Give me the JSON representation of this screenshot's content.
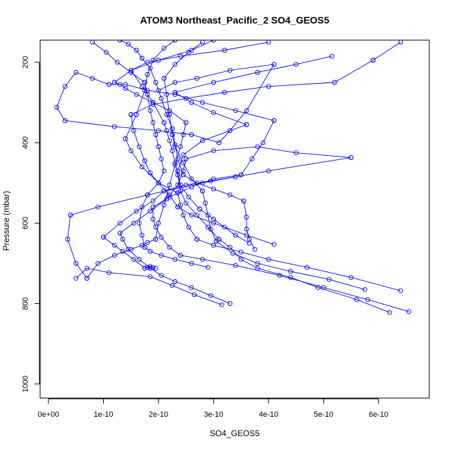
{
  "chart_data": {
    "type": "line",
    "title": "ATOM3 Northeast_Pacific_2 SO4_GEOS5",
    "xlabel": "SO4_GEOS5",
    "ylabel": "Pressure (mbar)",
    "xlim": [
      -1.5e-11,
      6.92e-10
    ],
    "ylim": [
      1035,
      145
    ],
    "y_reversed": true,
    "x_ticks": [
      {
        "value": 0,
        "label": "0e+00"
      },
      {
        "value": 1e-10,
        "label": "1e-10"
      },
      {
        "value": 2e-10,
        "label": "2e-10"
      },
      {
        "value": 3e-10,
        "label": "3e-10"
      },
      {
        "value": 4e-10,
        "label": "4e-10"
      },
      {
        "value": 5e-10,
        "label": "5e-10"
      },
      {
        "value": 6e-10,
        "label": "6e-10"
      }
    ],
    "y_ticks": [
      {
        "value": 200,
        "label": "200"
      },
      {
        "value": 400,
        "label": "400"
      },
      {
        "value": 600,
        "label": "600"
      },
      {
        "value": 800,
        "label": "800"
      },
      {
        "value": 1000,
        "label": "1000"
      }
    ],
    "grid": false,
    "legend": "none",
    "marker": "open-circle",
    "color": "#0000ff",
    "series": [
      {
        "x": [
          3.15e-10,
          2.65e-10,
          2.25e-10,
          1.85e-10,
          1.1e-10,
          7e-11,
          5e-11
        ],
        "y": [
          803,
          778,
          755,
          733,
          723,
          712,
          737
        ]
      },
      {
        "x": [
          7e-11,
          9e-11,
          1.2e-10,
          1.5e-10,
          1.7e-10,
          1.8e-10,
          1.95e-10
        ],
        "y": [
          737,
          700,
          680,
          665,
          655,
          648,
          640
        ]
      },
      {
        "x": [
          1.95e-10,
          2e-10,
          2.1e-10,
          2.2e-10,
          2.3e-10,
          2.4e-10,
          2.45e-10,
          2.5e-10
        ],
        "y": [
          640,
          600,
          555,
          505,
          455,
          410,
          380,
          350
        ]
      },
      {
        "x": [
          2.5e-10,
          2.2e-10,
          1.9e-10,
          1.6e-10,
          1.4e-10,
          1.3e-10,
          1.2e-10
        ],
        "y": [
          350,
          320,
          300,
          280,
          265,
          255,
          250
        ]
      },
      {
        "x": [
          1.2e-10,
          1.5e-10,
          2e-10,
          2.6e-10,
          3e-10
        ],
        "y": [
          250,
          220,
          195,
          170,
          145
        ]
      },
      {
        "x": [
          3.3e-10,
          2.95e-10,
          2.6e-10,
          2.3e-10,
          2.05e-10,
          1.85e-10
        ],
        "y": [
          800,
          780,
          760,
          745,
          730,
          712
        ]
      },
      {
        "x": [
          1.85e-10,
          1.65e-10,
          1.45e-10,
          1.35e-10,
          1.3e-10
        ],
        "y": [
          712,
          690,
          665,
          640,
          625
        ]
      },
      {
        "x": [
          1.3e-10,
          1.55e-10,
          1.85e-10,
          2.15e-10,
          2.35e-10,
          2.45e-10,
          2.5e-10
        ],
        "y": [
          625,
          600,
          570,
          540,
          505,
          470,
          440
        ]
      },
      {
        "x": [
          2.5e-10,
          3e-10,
          3.8e-10,
          4.5e-10,
          5.5e-10
        ],
        "y": [
          440,
          420,
          410,
          425,
          437
        ]
      },
      {
        "x": [
          5.5e-10,
          4e-10,
          2.8e-10,
          1.8e-10,
          9e-11,
          4e-11
        ],
        "y": [
          437,
          470,
          500,
          530,
          560,
          580
        ]
      },
      {
        "x": [
          4e-11,
          3.5e-11,
          5e-11,
          7e-11
        ],
        "y": [
          580,
          640,
          700,
          737
        ]
      },
      {
        "x": [
          6.55e-10,
          5.8e-10,
          5e-10,
          4.2e-10,
          3.4e-10,
          2.8e-10,
          2.4e-10
        ],
        "y": [
          820,
          790,
          760,
          730,
          705,
          690,
          680
        ]
      },
      {
        "x": [
          2.4e-10,
          2.2e-10,
          2.05e-10,
          1.95e-10,
          1.9e-10,
          1.9e-10
        ],
        "y": [
          680,
          660,
          635,
          610,
          590,
          560
        ]
      },
      {
        "x": [
          1.9e-10,
          2.2e-10,
          2.6e-10,
          3e-10,
          3.5e-10
        ],
        "y": [
          560,
          535,
          510,
          490,
          480
        ]
      },
      {
        "x": [
          3.5e-10,
          3.7e-10,
          3.9e-10,
          4.1e-10
        ],
        "y": [
          480,
          440,
          400,
          345
        ]
      },
      {
        "x": [
          4.1e-10,
          3.4e-10,
          2.8e-10,
          2.3e-10,
          1.8e-10,
          1.4e-10,
          1.1e-10
        ],
        "y": [
          345,
          320,
          300,
          280,
          270,
          255,
          255
        ]
      },
      {
        "x": [
          1.1e-10,
          8e-11,
          5e-11,
          3e-11,
          1.5e-11,
          3e-11
        ],
        "y": [
          255,
          240,
          225,
          260,
          312,
          345
        ]
      },
      {
        "x": [
          3e-11,
          1.2e-10,
          2e-10,
          2.6e-10,
          3.1e-10
        ],
        "y": [
          345,
          360,
          370,
          380,
          400
        ]
      },
      {
        "x": [
          3.1e-10,
          3.3e-10,
          3.6e-10,
          4.1e-10
        ],
        "y": [
          400,
          370,
          320,
          205
        ]
      },
      {
        "x": [
          4.1e-10,
          3.3e-10,
          2.7e-10,
          2.3e-10,
          2e-10
        ],
        "y": [
          205,
          220,
          240,
          250,
          270
        ]
      },
      {
        "x": [
          6.2e-10,
          5.6e-10,
          4.9e-10,
          4.4e-10,
          3.8e-10,
          3.5e-10,
          3.3e-10,
          3.1e-10
        ],
        "y": [
          822,
          790,
          760,
          735,
          712,
          690,
          660,
          640
        ]
      },
      {
        "x": [
          3.1e-10,
          2.9e-10,
          2.7e-10,
          2.5e-10,
          2.4e-10,
          2.35e-10
        ],
        "y": [
          640,
          610,
          580,
          550,
          520,
          480
        ]
      },
      {
        "x": [
          2.35e-10,
          2.3e-10,
          2.25e-10,
          2.2e-10,
          2.15e-10,
          2.1e-10
        ],
        "y": [
          480,
          450,
          420,
          395,
          370,
          350
        ]
      },
      {
        "x": [
          2.1e-10,
          1.9e-10,
          1.7e-10,
          1.5e-10
        ],
        "y": [
          350,
          300,
          260,
          220
        ]
      },
      {
        "x": [
          1.5e-10,
          1.8e-10,
          2.4e-10,
          3.2e-10,
          4e-10
        ],
        "y": [
          220,
          200,
          185,
          170,
          150
        ]
      },
      {
        "x": [
          6.4e-10,
          5.5e-10,
          4.7e-10,
          4e-10,
          3.5e-10,
          3e-10,
          2.7e-10
        ],
        "y": [
          768,
          735,
          710,
          690,
          672,
          655,
          640
        ]
      },
      {
        "x": [
          2.7e-10,
          2.55e-10,
          2.45e-10,
          2.4e-10,
          2.35e-10
        ],
        "y": [
          640,
          610,
          580,
          555,
          525
        ]
      },
      {
        "x": [
          2.35e-10,
          2e-10,
          1.7e-10,
          1.5e-10,
          1.4e-10
        ],
        "y": [
          525,
          500,
          460,
          420,
          390
        ]
      },
      {
        "x": [
          1.4e-10,
          1.6e-10,
          1.75e-10,
          1.8e-10
        ],
        "y": [
          390,
          330,
          270,
          230
        ]
      },
      {
        "x": [
          1.8e-10,
          1.9e-10,
          2.1e-10,
          2.3e-10
        ],
        "y": [
          230,
          195,
          165,
          145
        ]
      },
      {
        "x": [
          5.75e-10,
          5.1e-10,
          4.4e-10,
          3.8e-10,
          3.35e-10,
          3.05e-10
        ],
        "y": [
          765,
          740,
          720,
          700,
          675,
          645
        ]
      },
      {
        "x": [
          3.05e-10,
          2.95e-10,
          2.9e-10,
          2.85e-10,
          2.8e-10
        ],
        "y": [
          645,
          615,
          580,
          550,
          520
        ]
      },
      {
        "x": [
          2.8e-10,
          2.6e-10,
          2.45e-10,
          2.3e-10,
          2.25e-10
        ],
        "y": [
          520,
          490,
          450,
          410,
          380
        ]
      },
      {
        "x": [
          2.25e-10,
          2.2e-10,
          2.15e-10,
          2.1e-10
        ],
        "y": [
          380,
          330,
          280,
          240
        ]
      },
      {
        "x": [
          2.1e-10,
          2.3e-10,
          2.55e-10,
          2.8e-10
        ],
        "y": [
          240,
          205,
          175,
          150
        ]
      },
      {
        "x": [
          3.65e-10,
          3.4e-10,
          3.2e-10,
          3e-10,
          2.75e-10
        ],
        "y": [
          650,
          630,
          610,
          590,
          565
        ]
      },
      {
        "x": [
          2.75e-10,
          2.55e-10,
          2.4e-10,
          2.35e-10
        ],
        "y": [
          565,
          535,
          505,
          470
        ]
      },
      {
        "x": [
          2.35e-10,
          2.45e-10,
          2.8e-10,
          3.3e-10,
          3.6e-10
        ],
        "y": [
          470,
          430,
          395,
          370,
          355
        ]
      },
      {
        "x": [
          3.6e-10,
          3e-10,
          2.6e-10,
          2.3e-10
        ],
        "y": [
          355,
          325,
          300,
          275
        ]
      },
      {
        "x": [
          2.3e-10,
          3e-10,
          3.8e-10,
          4.5e-10,
          5.15e-10
        ],
        "y": [
          275,
          250,
          225,
          205,
          185
        ]
      },
      {
        "x": [
          4.1e-10,
          3.6e-10,
          3e-10,
          2.6e-10,
          2.35e-10
        ],
        "y": [
          653,
          630,
          600,
          580,
          560
        ]
      },
      {
        "x": [
          2.35e-10,
          2.2e-10,
          2e-10,
          1.85e-10,
          1.75e-10
        ],
        "y": [
          560,
          530,
          500,
          475,
          445
        ]
      },
      {
        "x": [
          1.75e-10,
          1.65e-10,
          1.55e-10,
          1.5e-10
        ],
        "y": [
          445,
          410,
          370,
          330
        ]
      },
      {
        "x": [
          1.5e-10,
          1.9e-10,
          2.5e-10,
          3.2e-10,
          4e-10,
          5.2e-10,
          5.9e-10
        ],
        "y": [
          330,
          305,
          290,
          275,
          260,
          250,
          195
        ]
      },
      {
        "x": [
          5.9e-10,
          6.4e-10
        ],
        "y": [
          195,
          150
        ]
      },
      {
        "x": [
          3.75e-10,
          3.65e-10,
          3.6e-10,
          3.6e-10,
          3.55e-10
        ],
        "y": [
          665,
          640,
          615,
          585,
          545
        ]
      },
      {
        "x": [
          3.55e-10,
          3.3e-10,
          3e-10,
          2.7e-10,
          2.45e-10
        ],
        "y": [
          545,
          530,
          515,
          500,
          480
        ]
      },
      {
        "x": [
          2.45e-10,
          2.35e-10,
          2.3e-10,
          2.25e-10
        ],
        "y": [
          480,
          440,
          405,
          365
        ]
      },
      {
        "x": [
          2.25e-10,
          2.15e-10,
          2.05e-10,
          1.95e-10,
          1.85e-10,
          1.7e-10
        ],
        "y": [
          365,
          330,
          290,
          250,
          215,
          190
        ]
      },
      {
        "x": [
          1.7e-10,
          1.6e-10,
          1.45e-10,
          1.3e-10
        ],
        "y": [
          190,
          170,
          155,
          145
        ]
      },
      {
        "x": [
          2.9e-10,
          2.6e-10,
          2.3e-10,
          2.05e-10,
          1.85e-10,
          1.75e-10
        ],
        "y": [
          710,
          700,
          690,
          680,
          670,
          660
        ]
      },
      {
        "x": [
          1.75e-10,
          1.7e-10,
          1.65e-10,
          1.7e-10,
          1.8e-10
        ],
        "y": [
          660,
          630,
          600,
          560,
          530
        ]
      },
      {
        "x": [
          1.8e-10,
          2e-10,
          2.1e-10,
          2.05e-10,
          2e-10
        ],
        "y": [
          530,
          500,
          470,
          440,
          410
        ]
      },
      {
        "x": [
          2e-10,
          1.95e-10,
          1.9e-10,
          1.85e-10,
          1.8e-10,
          1.75e-10
        ],
        "y": [
          410,
          380,
          350,
          320,
          280,
          250
        ]
      },
      {
        "x": [
          1.75e-10,
          1.5e-10,
          1.25e-10,
          1.05e-10,
          8e-11
        ],
        "y": [
          250,
          225,
          200,
          175,
          150
        ]
      },
      {
        "x": [
          1.95e-10,
          1.9e-10,
          1.85e-10,
          1.8e-10,
          1.75e-10
        ],
        "y": [
          712,
          710,
          708,
          710,
          712
        ]
      },
      {
        "x": [
          1.75e-10,
          1.55e-10,
          1.35e-10,
          1.2e-10,
          1e-10
        ],
        "y": [
          712,
          690,
          670,
          655,
          635
        ]
      },
      {
        "x": [
          1e-10,
          1.3e-10,
          1.6e-10,
          1.9e-10,
          2.1e-10
        ],
        "y": [
          635,
          600,
          570,
          545,
          520
        ]
      },
      {
        "x": [
          2.1e-10,
          2.5e-10,
          2.95e-10,
          3.4e-10
        ],
        "y": [
          520,
          505,
          495,
          485
        ]
      }
    ]
  }
}
